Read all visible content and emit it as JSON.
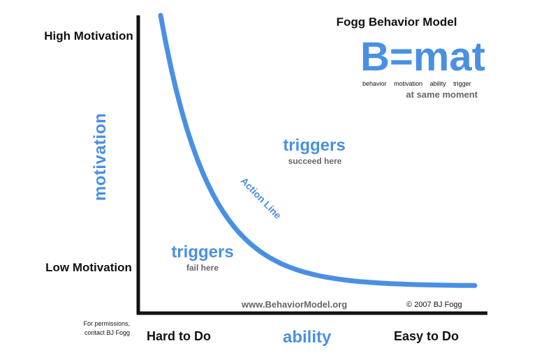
{
  "title": "Fogg Behavior Model",
  "formula": "B=mat",
  "formula_legend": [
    "behavior",
    "motivation",
    "ability",
    "trigger"
  ],
  "formula_note": "at same moment",
  "y_axis": {
    "title": "motivation",
    "high_label": "High Motivation",
    "low_label": "Low Motivation"
  },
  "x_axis": {
    "title": "ability",
    "low_label": "Hard to Do",
    "high_label": "Easy to Do"
  },
  "regions": {
    "success": {
      "label": "triggers",
      "sublabel": "succeed here"
    },
    "fail": {
      "label": "triggers",
      "sublabel": "fail here"
    }
  },
  "curve_label": "Action Line",
  "website": "www.BehaviorModel.org",
  "copyright": "© 2007 BJ Fogg",
  "permissions": "For permissions, contact BJ Fogg",
  "colors": {
    "accent": "#4a90e2",
    "axis": "#111111",
    "note": "#666666"
  }
}
